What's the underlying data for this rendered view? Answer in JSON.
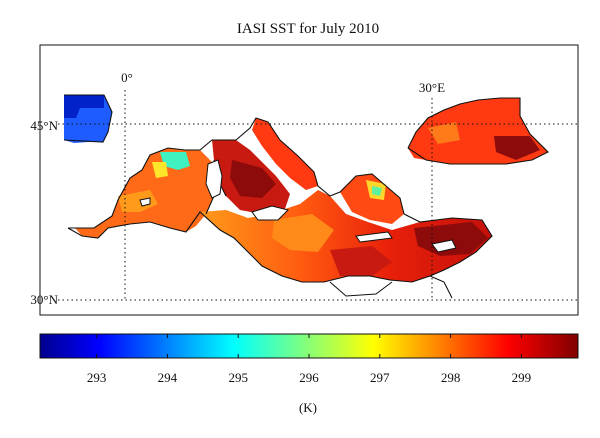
{
  "title": "IASI SST for July 2010",
  "map": {
    "lon_labels": [
      "0°",
      "30°E"
    ],
    "lat_labels": [
      "45°N",
      "30°N"
    ],
    "gridlines": "dotted",
    "frame": "box"
  },
  "colorbar": {
    "colormap": "jet",
    "range": [
      292.2,
      299.8
    ],
    "ticks": [
      "293",
      "294",
      "295",
      "296",
      "297",
      "298",
      "299"
    ],
    "unit_label": "(K)",
    "colors": [
      "#00008f",
      "#0000ff",
      "#00ffff",
      "#ffff00",
      "#ff0000",
      "#800000"
    ]
  },
  "fields": {
    "mediterranean_typical_K": 298.5,
    "biscay_typical_K": 293.0,
    "gulf_of_lion_K": 295.5
  }
}
